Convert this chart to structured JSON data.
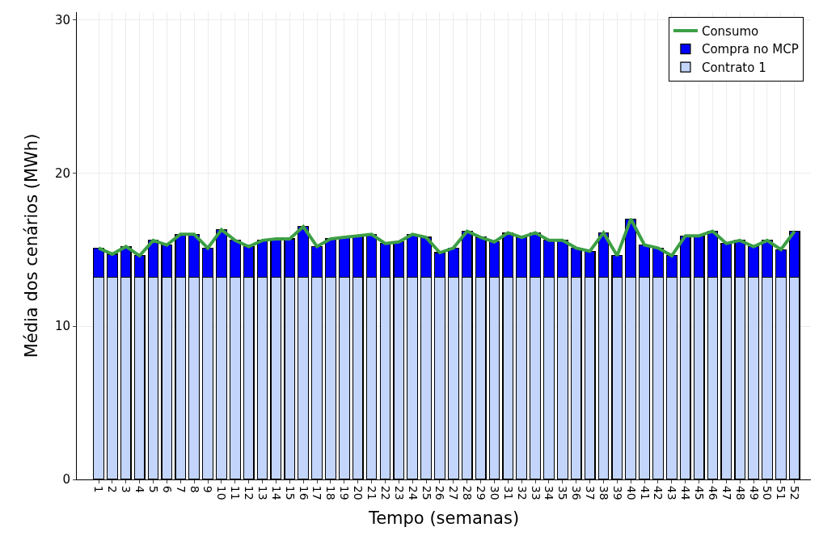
{
  "chart_data": {
    "type": "bar",
    "stacked": true,
    "xlabel": "Tempo (semanas)",
    "ylabel": "Média dos cenários (MWh)",
    "categories": [
      "1",
      "2",
      "3",
      "4",
      "5",
      "6",
      "7",
      "8",
      "9",
      "10",
      "11",
      "12",
      "13",
      "14",
      "15",
      "16",
      "17",
      "18",
      "19",
      "20",
      "21",
      "22",
      "23",
      "24",
      "25",
      "26",
      "27",
      "28",
      "29",
      "30",
      "31",
      "32",
      "33",
      "34",
      "35",
      "36",
      "37",
      "38",
      "39",
      "40",
      "41",
      "42",
      "43",
      "44",
      "45",
      "46",
      "47",
      "48",
      "49",
      "50",
      "51",
      "52"
    ],
    "series": [
      {
        "name": "Contrato 1",
        "color": "#c3d5fa",
        "values": [
          13.2,
          13.2,
          13.2,
          13.2,
          13.2,
          13.2,
          13.2,
          13.2,
          13.2,
          13.2,
          13.2,
          13.2,
          13.2,
          13.2,
          13.2,
          13.2,
          13.2,
          13.2,
          13.2,
          13.2,
          13.2,
          13.2,
          13.2,
          13.2,
          13.2,
          13.2,
          13.2,
          13.2,
          13.2,
          13.2,
          13.2,
          13.2,
          13.2,
          13.2,
          13.2,
          13.2,
          13.2,
          13.2,
          13.2,
          13.2,
          13.2,
          13.2,
          13.2,
          13.2,
          13.2,
          13.2,
          13.2,
          13.2,
          13.2,
          13.2,
          13.2,
          13.2
        ]
      },
      {
        "name": "Compra no MCP",
        "color": "#0000ff",
        "values": [
          1.9,
          1.5,
          2.0,
          1.4,
          2.4,
          2.1,
          2.8,
          2.8,
          1.9,
          3.1,
          2.4,
          2.0,
          2.4,
          2.5,
          2.5,
          3.3,
          2.0,
          2.5,
          2.6,
          2.7,
          2.8,
          2.2,
          2.3,
          2.8,
          2.6,
          1.6,
          1.9,
          3.0,
          2.6,
          2.3,
          2.9,
          2.6,
          2.9,
          2.4,
          2.4,
          1.9,
          1.7,
          2.9,
          1.4,
          3.8,
          2.1,
          1.9,
          1.4,
          2.7,
          2.7,
          3.0,
          2.2,
          2.4,
          2.0,
          2.4,
          1.8,
          3.0
        ]
      },
      {
        "name": "Consumo",
        "type": "line",
        "color": "#3d9f46",
        "values": [
          15.1,
          14.7,
          15.2,
          14.6,
          15.6,
          15.3,
          16.0,
          16.0,
          15.1,
          16.3,
          15.6,
          15.2,
          15.6,
          15.7,
          15.7,
          16.5,
          15.2,
          15.7,
          15.8,
          15.9,
          16.0,
          15.4,
          15.5,
          16.0,
          15.8,
          14.8,
          15.1,
          16.2,
          15.8,
          15.5,
          16.1,
          15.8,
          16.1,
          15.6,
          15.6,
          15.1,
          14.9,
          16.1,
          14.6,
          17.0,
          15.3,
          15.1,
          14.6,
          15.9,
          15.9,
          16.2,
          15.4,
          15.6,
          15.2,
          15.6,
          15.0,
          16.2
        ]
      }
    ],
    "ylim": [
      0,
      30.5
    ],
    "yticks": [
      0,
      10,
      20,
      30
    ],
    "grid": true,
    "legend": "top right"
  }
}
